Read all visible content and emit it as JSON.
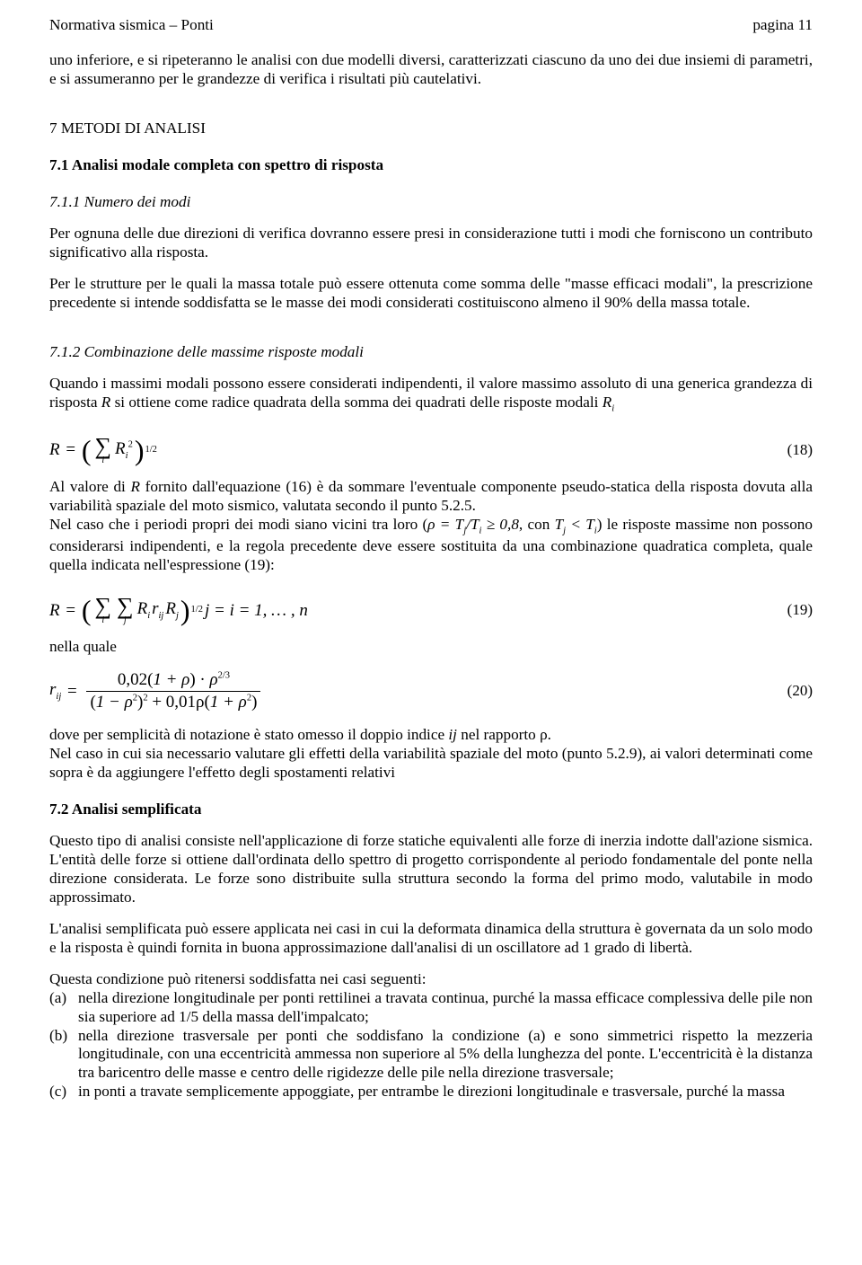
{
  "header": {
    "left": "Normativa sismica – Ponti",
    "right": "pagina 11"
  },
  "intro": "uno inferiore, e si ripeteranno le analisi con due modelli diversi, caratterizzati ciascuno da uno dei due insiemi di parametri, e si assumeranno per le grandezze di verifica i risultati più cautelativi.",
  "s7_title": "7 METODI DI ANALISI",
  "s71_title": "7.1 Analisi modale completa con spettro di risposta",
  "s711_title": "7.1.1 Numero dei modi",
  "s711_p1": "Per ognuna delle due direzioni di verifica dovranno essere presi in considerazione tutti i modi che forniscono un contributo significativo alla risposta.",
  "s711_p2": "Per le strutture per le quali la massa totale può essere ottenuta come somma delle \"masse efficaci modali\", la prescrizione precedente si intende soddisfatta se le masse dei modi considerati costituiscono almeno il 90% della massa totale.",
  "s712_title": "7.1.2 Combinazione delle massime risposte modali",
  "s712_p1a": "Quando i massimi modali possono essere considerati indipendenti, il valore massimo assoluto di una generica grandezza di risposta ",
  "s712_p1b": " si ottiene come radice quadrata della somma dei quadrati delle risposte modali ",
  "eq18": {
    "lhs": "R",
    "sumIdx": "i",
    "term_base": "R",
    "term_sub": "i",
    "term_sup": "2",
    "outer_sup": "1/2",
    "num": "(18)"
  },
  "s712_p2a": "Al valore di ",
  "s712_p2b": " fornito dall'equazione (16) è da sommare l'eventuale componente pseudo-statica della risposta dovuta alla variabilità spaziale del moto sismico, valutata secondo il punto 5.2.5.",
  "s712_p3a": "Nel caso che i periodi propri dei modi siano vicini tra loro (",
  "s712_rho": "ρ = T",
  "s712_tj": "j",
  "s712_slash": "/T",
  "s712_ti": "i",
  "s712_p3b": " ≥ 0,8",
  "s712_p3c": ", con ",
  "s712_Tj2": "T",
  "s712_lt": " < ",
  "s712_Ti2": "T",
  "s712_p3d": ") le risposte massime non possono considerarsi indipendenti, e la regola precedente deve essere sostituita da una combinazione quadratica completa,  quale quella indicata nell'espressione (19):",
  "eq19": {
    "lhs": "R",
    "sumI": "i",
    "sumJ": "j",
    "t1": "R",
    "t1s": "i",
    "t2": "r",
    "t2s": "ij",
    "t3": "R",
    "t3s": "j",
    "outer_sup": "1/2",
    "tail": "  j = i = 1, … , n",
    "num": "(19)"
  },
  "nella_quale": "nella quale",
  "eq20": {
    "lhs_base": "r",
    "lhs_sub": "ij",
    "num_a": "0,02",
    "num_b": "1 + ρ",
    "num_c": "ρ",
    "num_exp": "2/3",
    "den_a": "1 − ρ",
    "den_a_e": "2",
    "den_a_oe": "2",
    "den_plus": " + 0,01ρ",
    "den_b": "1 + ρ",
    "den_b_e": "2",
    "num": "(20)"
  },
  "s712_p4a": "dove per semplicità di notazione è stato omesso il doppio indice ",
  "s712_ij": "ij",
  "s712_p4b": " nel rapporto ρ.",
  "s712_p5": "Nel caso in cui sia necessario valutare gli effetti della variabilità spaziale del moto (punto 5.2.9), ai valori determinati come sopra è da aggiungere l'effetto degli spostamenti relativi",
  "s72_title": "7.2 Analisi semplificata",
  "s72_p1": "Questo tipo di analisi consiste nell'applicazione di forze statiche equivalenti alle forze di inerzia indotte dall'azione sismica. L'entità delle forze si ottiene dall'ordinata dello spettro di progetto corrispondente al periodo fondamentale del ponte nella direzione considerata. Le forze sono distribuite sulla struttura secondo la forma del primo modo, valutabile in modo approssimato.",
  "s72_p2": "L'analisi semplificata può essere applicata nei casi in cui la deformata dinamica della struttura è governata da un solo modo e la risposta è quindi fornita in buona approssimazione dall'analisi di un oscillatore ad 1 grado di libertà.",
  "s72_p3": "Questa condizione può ritenersi soddisfatta nei casi seguenti:",
  "list": [
    {
      "tag": "(a)",
      "body": "nella direzione longitudinale per ponti rettilinei a travata continua, purché la massa efficace complessiva delle pile non sia superiore ad 1/5 della massa dell'impalcato;"
    },
    {
      "tag": "(b)",
      "body": "nella direzione trasversale per ponti che soddisfano la condizione (a) e sono simmetrici rispetto la mezzeria longitudinale, con una eccentricità ammessa non superiore al 5% della lunghezza del ponte. L'eccentricità è la distanza tra baricentro delle masse e centro delle rigidezze delle pile nella direzione trasversale;"
    },
    {
      "tag": "(c)",
      "body": "in ponti a travate semplicemente appoggiate, per entrambe le direzioni longitudinale e trasversale, purché la massa"
    }
  ]
}
